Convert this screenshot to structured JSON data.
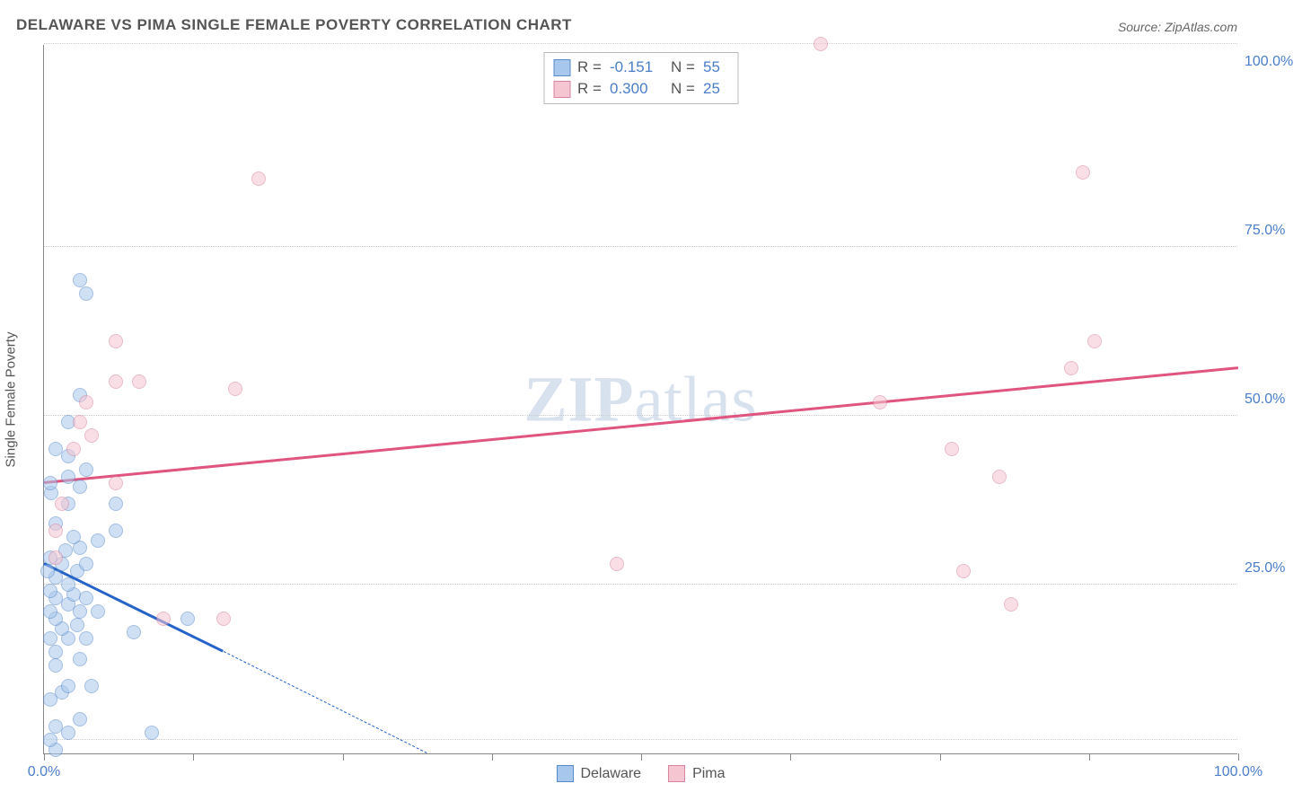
{
  "title": "DELAWARE VS PIMA SINGLE FEMALE POVERTY CORRELATION CHART",
  "source": "Source: ZipAtlas.com",
  "ylabel": "Single Female Poverty",
  "watermark_zip": "ZIP",
  "watermark_atlas": "atlas",
  "chart": {
    "type": "scatter",
    "xlim": [
      0,
      100
    ],
    "ylim": [
      0,
      105
    ],
    "background_color": "#ffffff",
    "grid_color": "#cccccc",
    "x_ticks_major": [
      0,
      50,
      100
    ],
    "x_ticks_minor": [
      12.5,
      25,
      37.5,
      62.5,
      75,
      87.5
    ],
    "y_ticks": [
      25,
      50,
      75,
      100
    ],
    "y_tick_labels": [
      "25.0%",
      "50.0%",
      "75.0%",
      "100.0%"
    ],
    "y_grid": [
      2,
      25,
      50,
      75,
      105
    ],
    "x_label_min": "0.0%",
    "x_label_max": "100.0%",
    "marker_radius": 8,
    "marker_opacity": 0.55,
    "axis_label_color": "#4a7ec9",
    "series": [
      {
        "name": "Delaware",
        "fill": "#a8c7ec",
        "stroke": "#5a8bc9",
        "trend_color": "#2563c9",
        "trend": {
          "x1": 0,
          "y1": 28,
          "x2": 15,
          "y2": 15
        },
        "trend_ext": {
          "x1": 15,
          "y1": 15,
          "x2": 32,
          "y2": 0
        },
        "points": [
          [
            1,
            0.5
          ],
          [
            0.5,
            2
          ],
          [
            2,
            3
          ],
          [
            1,
            4
          ],
          [
            3,
            5
          ],
          [
            0.5,
            8
          ],
          [
            1.5,
            9
          ],
          [
            2,
            10
          ],
          [
            4,
            10
          ],
          [
            1,
            13
          ],
          [
            3,
            14
          ],
          [
            1,
            15
          ],
          [
            0.5,
            17
          ],
          [
            2,
            17
          ],
          [
            3.5,
            17
          ],
          [
            1.5,
            18.5
          ],
          [
            7.5,
            18
          ],
          [
            2.8,
            19
          ],
          [
            1,
            20
          ],
          [
            0.5,
            21
          ],
          [
            3,
            21
          ],
          [
            4.5,
            21
          ],
          [
            2,
            22
          ],
          [
            1,
            23
          ],
          [
            2.5,
            23.5
          ],
          [
            3.5,
            23
          ],
          [
            0.5,
            24
          ],
          [
            2,
            25
          ],
          [
            1,
            26
          ],
          [
            0.3,
            27
          ],
          [
            2.8,
            27
          ],
          [
            1.5,
            28
          ],
          [
            3.5,
            28
          ],
          [
            0.5,
            29
          ],
          [
            1.8,
            30
          ],
          [
            3,
            30.5
          ],
          [
            2.5,
            32
          ],
          [
            4.5,
            31.5
          ],
          [
            6,
            33
          ],
          [
            1,
            34
          ],
          [
            12,
            20
          ],
          [
            2,
            37
          ],
          [
            6,
            37
          ],
          [
            0.6,
            38.5
          ],
          [
            3,
            39.5
          ],
          [
            2,
            41
          ],
          [
            3.5,
            42
          ],
          [
            0.5,
            40
          ],
          [
            2,
            49
          ],
          [
            3,
            53
          ],
          [
            3.5,
            68
          ],
          [
            3,
            70
          ],
          [
            1,
            45
          ],
          [
            9,
            3
          ],
          [
            2,
            44
          ]
        ]
      },
      {
        "name": "Pima",
        "fill": "#f5c5d1",
        "stroke": "#d884a0",
        "trend_color": "#e0557f",
        "trend": {
          "x1": 0,
          "y1": 40,
          "x2": 100,
          "y2": 57
        },
        "points": [
          [
            1,
            29
          ],
          [
            1,
            33
          ],
          [
            1.5,
            37
          ],
          [
            2.5,
            45
          ],
          [
            6,
            40
          ],
          [
            3,
            49
          ],
          [
            3.5,
            52
          ],
          [
            4,
            47
          ],
          [
            6,
            55
          ],
          [
            8,
            55
          ],
          [
            6,
            61
          ],
          [
            10,
            20
          ],
          [
            15,
            20
          ],
          [
            18,
            85
          ],
          [
            48,
            28
          ],
          [
            65,
            105
          ],
          [
            70,
            52
          ],
          [
            76,
            45
          ],
          [
            77,
            27
          ],
          [
            80,
            41
          ],
          [
            81,
            22
          ],
          [
            86,
            57
          ],
          [
            87,
            86
          ],
          [
            88,
            61
          ],
          [
            16,
            54
          ]
        ]
      }
    ]
  },
  "stats": [
    {
      "swatch_fill": "#a8c7ec",
      "swatch_stroke": "#5a8bc9",
      "r_label": "R =",
      "r_value": "-0.151",
      "n_label": "N =",
      "n_value": "55"
    },
    {
      "swatch_fill": "#f5c5d1",
      "swatch_stroke": "#d884a0",
      "r_label": "R =",
      "r_value": "0.300",
      "n_label": "N =",
      "n_value": "25"
    }
  ],
  "legend": [
    {
      "swatch_fill": "#a8c7ec",
      "swatch_stroke": "#5a8bc9",
      "label": "Delaware"
    },
    {
      "swatch_fill": "#f5c5d1",
      "swatch_stroke": "#d884a0",
      "label": "Pima"
    }
  ]
}
